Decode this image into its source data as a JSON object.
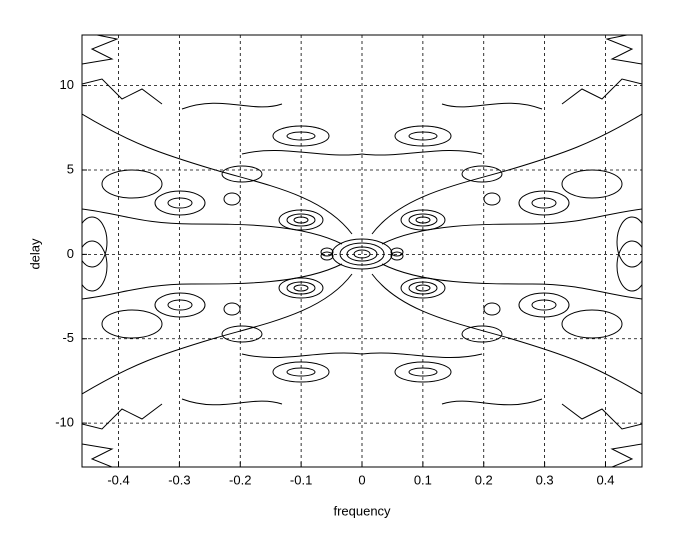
{
  "chart_data": {
    "type": "contour",
    "x_label": "frequency",
    "y_label": "delay",
    "xlim": [
      -0.46,
      0.46
    ],
    "ylim": [
      -12.6,
      13
    ],
    "xticks": [
      -0.4,
      -0.3,
      -0.2,
      -0.1,
      0,
      0.1,
      0.2,
      0.3,
      0.4
    ],
    "yticks": [
      -10,
      -5,
      0,
      5,
      10
    ],
    "grid": true,
    "color": "#000000"
  }
}
